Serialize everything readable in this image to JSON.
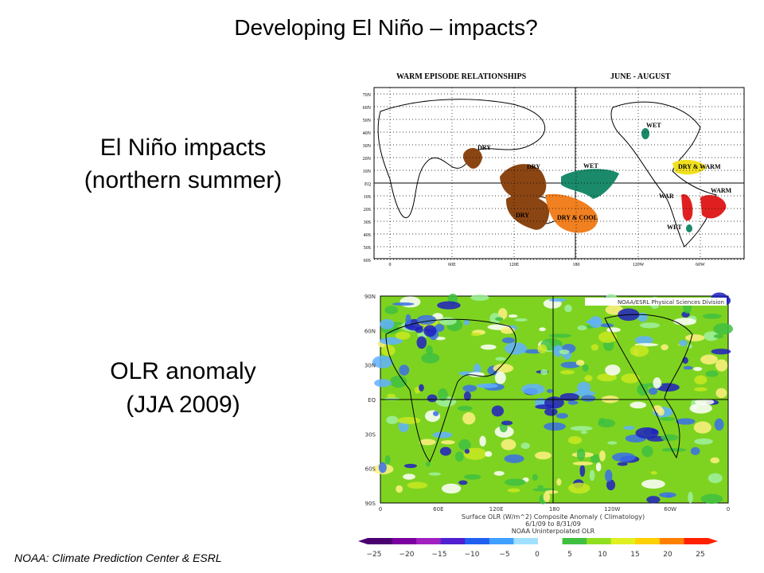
{
  "title": "Developing El Niño – impacts?",
  "panels": [
    {
      "caption": [
        "El Niño impacts",
        "(northern summer)"
      ]
    },
    {
      "caption": [
        "OLR anomaly",
        "(JJA 2009)"
      ]
    }
  ],
  "footer": "NOAA: Climate Prediction Center & ESRL",
  "map1": {
    "title": [
      "WARM EPISODE RELATIONSHIPS",
      "JUNE - AUGUST"
    ],
    "lat_labels": [
      "70N",
      "60N",
      "50N",
      "40N",
      "30N",
      "20N",
      "10N",
      "EQ",
      "10S",
      "20S",
      "30S",
      "40S",
      "50S",
      "60S"
    ],
    "lon_labels": [
      "0",
      "60E",
      "120E",
      "180",
      "120W",
      "60W"
    ],
    "regions": [
      "DRY",
      "DRY",
      "WET",
      "WET",
      "DRY & WARM",
      "WARM",
      "WAR",
      "WET",
      "DRY",
      "DRY & COOL"
    ]
  },
  "map2": {
    "credit": "NOAA/ESRL Physical Sciences Division",
    "lat_labels": [
      "90N",
      "60N",
      "30N",
      "EQ",
      "30S",
      "60S",
      "90S"
    ],
    "lon_labels": [
      "0",
      "60E",
      "120E",
      "180",
      "120W",
      "60W",
      "0"
    ],
    "caption": [
      "Surface OLR (W/m^2) Composite Anomaly ( Climatology)",
      "6/1/09 to 8/31/09",
      "NOAA Uninterpolated OLR"
    ],
    "colorbar_ticks": [
      "−25",
      "−20",
      "−15",
      "−10",
      "−5",
      "0",
      "5",
      "10",
      "15",
      "20",
      "25"
    ]
  }
}
